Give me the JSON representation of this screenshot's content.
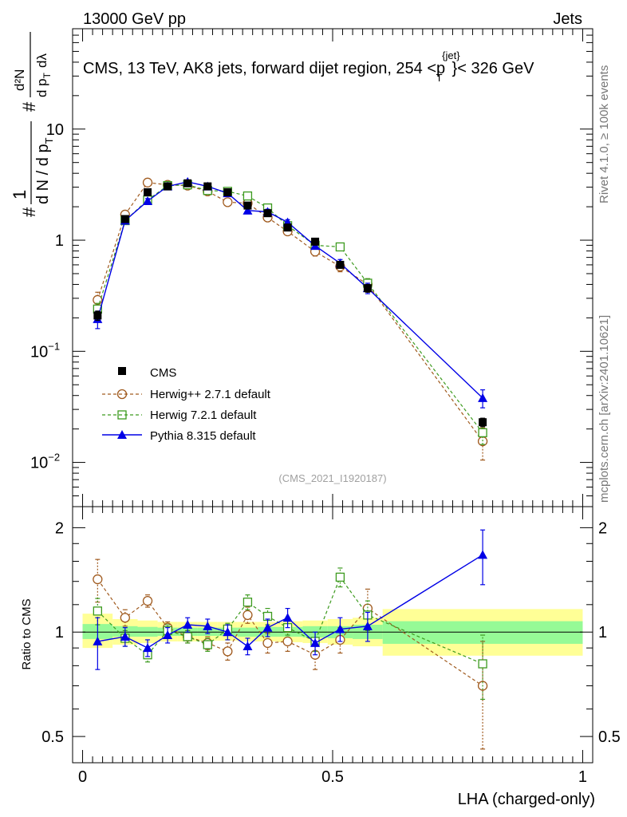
{
  "header": {
    "left": "13000 GeV pp",
    "right": "Jets"
  },
  "title": {
    "main": "CMS, 13 TeV, AK8 jets, forward dijet region, 254 <p",
    "sup": "{jet}",
    "sub": "T",
    "tail": "}< 326 GeV"
  },
  "side_labels": {
    "rivet": "Rivet 4.1.0, ≥ 100k events",
    "mcplots": "mcplots.cern.ch [arXiv:2401.10621]"
  },
  "watermark": "(CMS_2021_I1920187)",
  "y_label_top": {
    "hash1": "#",
    "one": "1",
    "dN": "d N / d p",
    "T": "T",
    "hash2": "#",
    "d2N": "d²N",
    "dpTdl": "d p",
    "T2": "T",
    "dlambda": "dλ"
  },
  "y_label_bottom": "Ratio to CMS",
  "x_label": "LHA (charged-only)",
  "colors": {
    "cms": "#000000",
    "herwigpp": "#a05a1e",
    "herwig7": "#3c9a1e",
    "pythia": "#0000e6",
    "band_inner": "#96fa96",
    "band_outer": "#ffff96"
  },
  "chart_data": [
    {
      "type": "scatter",
      "panel": "main",
      "yscale": "log",
      "xlim": [
        -0.02,
        1.02
      ],
      "ylim": [
        0.004,
        80
      ],
      "yticks": [
        {
          "value": 10,
          "label": "10"
        },
        {
          "value": 1,
          "label": "1"
        },
        {
          "value": 0.1,
          "label": "10",
          "exp": "−1"
        },
        {
          "value": 0.01,
          "label": "10",
          "exp": "−2"
        }
      ],
      "legend_position": "lower-left",
      "series": [
        {
          "name": "CMS",
          "key": "cms",
          "x": [
            0.03,
            0.085,
            0.13,
            0.17,
            0.21,
            0.25,
            0.29,
            0.33,
            0.37,
            0.41,
            0.465,
            0.515,
            0.57,
            0.8
          ],
          "y": [
            0.21,
            1.55,
            2.7,
            3.05,
            3.25,
            3.05,
            2.7,
            2.05,
            1.75,
            1.3,
            0.97,
            0.6,
            0.37,
            0.023
          ],
          "err": [
            0.02,
            0.1,
            0.12,
            0.12,
            0.12,
            0.12,
            0.1,
            0.1,
            0.08,
            0.06,
            0.05,
            0.04,
            0.03,
            0.002
          ]
        },
        {
          "name": "Herwig++ 2.7.1 default",
          "key": "herwigpp",
          "x": [
            0.03,
            0.085,
            0.13,
            0.17,
            0.21,
            0.25,
            0.29,
            0.33,
            0.37,
            0.41,
            0.465,
            0.515,
            0.57,
            0.8
          ],
          "y": [
            0.29,
            1.7,
            3.3,
            3.15,
            3.1,
            2.75,
            2.2,
            2.15,
            1.6,
            1.2,
            0.79,
            0.58,
            0.4,
            0.0155
          ],
          "err": [
            0.05,
            0.1,
            0.15,
            0.15,
            0.15,
            0.13,
            0.12,
            0.12,
            0.1,
            0.08,
            0.07,
            0.06,
            0.05,
            0.005
          ]
        },
        {
          "name": "Herwig 7.2.1 default",
          "key": "herwig7",
          "x": [
            0.03,
            0.085,
            0.13,
            0.17,
            0.21,
            0.25,
            0.29,
            0.33,
            0.37,
            0.41,
            0.465,
            0.515,
            0.57,
            0.8
          ],
          "y": [
            0.24,
            1.5,
            2.3,
            3.1,
            3.15,
            2.8,
            2.75,
            2.5,
            1.95,
            1.35,
            0.9,
            0.87,
            0.41,
            0.0185
          ],
          "err": [
            0.03,
            0.08,
            0.12,
            0.13,
            0.13,
            0.12,
            0.12,
            0.12,
            0.1,
            0.08,
            0.06,
            0.06,
            0.04,
            0.004
          ]
        },
        {
          "name": "Pythia 8.315 default",
          "key": "pythia",
          "x": [
            0.03,
            0.085,
            0.13,
            0.17,
            0.21,
            0.25,
            0.29,
            0.33,
            0.37,
            0.41,
            0.465,
            0.515,
            0.57,
            0.8
          ],
          "y": [
            0.195,
            1.5,
            2.25,
            3.05,
            3.35,
            3.05,
            2.65,
            1.85,
            1.8,
            1.45,
            0.89,
            0.62,
            0.37,
            0.038
          ],
          "err": [
            0.035,
            0.1,
            0.12,
            0.13,
            0.13,
            0.12,
            0.12,
            0.1,
            0.1,
            0.08,
            0.06,
            0.05,
            0.04,
            0.007
          ]
        }
      ]
    },
    {
      "type": "scatter",
      "panel": "ratio",
      "ylabel": "Ratio to CMS",
      "xlabel": "LHA (charged-only)",
      "xlim": [
        -0.02,
        1.02
      ],
      "ylim": [
        0.42,
        2.3
      ],
      "yticks": [
        {
          "value": 2,
          "label": "2"
        },
        {
          "value": 1,
          "label": "1"
        },
        {
          "value": 0.5,
          "label": "0.5"
        }
      ],
      "xticks": [
        {
          "value": 0,
          "label": "0"
        },
        {
          "value": 0.5,
          "label": "0.5"
        },
        {
          "value": 1,
          "label": "1"
        }
      ],
      "reference_line": 1,
      "bands": [
        {
          "x0": 0.0,
          "x1": 0.06,
          "inner": [
            0.955,
            1.055
          ],
          "outer": [
            0.9,
            1.13
          ]
        },
        {
          "x0": 0.06,
          "x1": 0.11,
          "inner": [
            0.97,
            1.04
          ],
          "outer": [
            0.92,
            1.09
          ]
        },
        {
          "x0": 0.11,
          "x1": 0.15,
          "inner": [
            0.97,
            1.035
          ],
          "outer": [
            0.93,
            1.08
          ]
        },
        {
          "x0": 0.15,
          "x1": 0.19,
          "inner": [
            0.975,
            1.03
          ],
          "outer": [
            0.94,
            1.07
          ]
        },
        {
          "x0": 0.19,
          "x1": 0.23,
          "inner": [
            0.975,
            1.03
          ],
          "outer": [
            0.94,
            1.07
          ]
        },
        {
          "x0": 0.23,
          "x1": 0.27,
          "inner": [
            0.975,
            1.03
          ],
          "outer": [
            0.945,
            1.07
          ]
        },
        {
          "x0": 0.27,
          "x1": 0.31,
          "inner": [
            0.975,
            1.03
          ],
          "outer": [
            0.945,
            1.07
          ]
        },
        {
          "x0": 0.31,
          "x1": 0.35,
          "inner": [
            0.97,
            1.03
          ],
          "outer": [
            0.94,
            1.07
          ]
        },
        {
          "x0": 0.35,
          "x1": 0.39,
          "inner": [
            0.97,
            1.035
          ],
          "outer": [
            0.94,
            1.07
          ]
        },
        {
          "x0": 0.39,
          "x1": 0.44,
          "inner": [
            0.97,
            1.035
          ],
          "outer": [
            0.935,
            1.075
          ]
        },
        {
          "x0": 0.44,
          "x1": 0.49,
          "inner": [
            0.965,
            1.04
          ],
          "outer": [
            0.93,
            1.08
          ]
        },
        {
          "x0": 0.49,
          "x1": 0.54,
          "inner": [
            0.96,
            1.04
          ],
          "outer": [
            0.92,
            1.09
          ]
        },
        {
          "x0": 0.54,
          "x1": 0.6,
          "inner": [
            0.955,
            1.05
          ],
          "outer": [
            0.91,
            1.1
          ]
        },
        {
          "x0": 0.6,
          "x1": 1.0,
          "inner": [
            0.925,
            1.075
          ],
          "outer": [
            0.855,
            1.165
          ]
        }
      ],
      "series": [
        {
          "name": "Herwig++ 2.7.1 default",
          "key": "herwigpp",
          "x": [
            0.03,
            0.085,
            0.13,
            0.17,
            0.21,
            0.25,
            0.29,
            0.33,
            0.37,
            0.41,
            0.465,
            0.515,
            0.57,
            0.8
          ],
          "y": [
            1.42,
            1.1,
            1.23,
            1.03,
            0.97,
            0.93,
            0.88,
            1.12,
            0.93,
            0.94,
            0.86,
            0.95,
            1.17,
            0.7
          ],
          "err": [
            0.2,
            0.06,
            0.05,
            0.04,
            0.04,
            0.04,
            0.05,
            0.06,
            0.06,
            0.06,
            0.08,
            0.08,
            0.16,
            0.24
          ]
        },
        {
          "name": "Herwig 7.2.1 default",
          "key": "herwig7",
          "x": [
            0.03,
            0.085,
            0.13,
            0.17,
            0.21,
            0.25,
            0.29,
            0.33,
            0.37,
            0.41,
            0.465,
            0.515,
            0.57,
            0.8
          ],
          "y": [
            1.15,
            0.96,
            0.86,
            1.01,
            0.97,
            0.92,
            1.02,
            1.22,
            1.11,
            1.03,
            0.94,
            1.44,
            1.12,
            0.81
          ],
          "err": [
            0.1,
            0.05,
            0.04,
            0.04,
            0.04,
            0.04,
            0.04,
            0.06,
            0.06,
            0.05,
            0.06,
            0.09,
            0.11,
            0.17
          ]
        },
        {
          "name": "Pythia 8.315 default",
          "key": "pythia",
          "x": [
            0.03,
            0.085,
            0.13,
            0.17,
            0.21,
            0.25,
            0.29,
            0.33,
            0.37,
            0.41,
            0.465,
            0.515,
            0.57,
            0.8
          ],
          "y": [
            0.94,
            0.97,
            0.9,
            0.98,
            1.05,
            1.04,
            1.0,
            0.91,
            1.03,
            1.1,
            0.93,
            1.02,
            1.04,
            1.67
          ],
          "err": [
            0.16,
            0.06,
            0.05,
            0.05,
            0.05,
            0.05,
            0.05,
            0.05,
            0.06,
            0.07,
            0.07,
            0.08,
            0.1,
            0.3
          ]
        }
      ]
    }
  ]
}
